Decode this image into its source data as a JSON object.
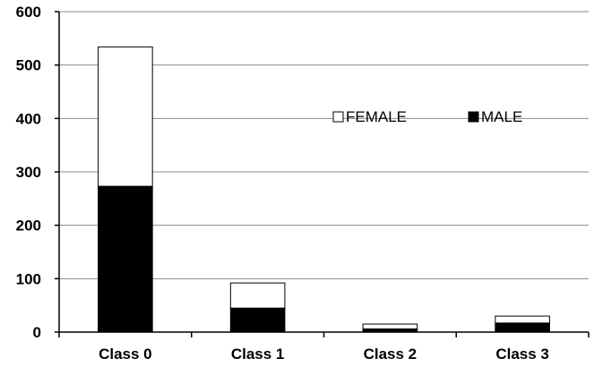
{
  "chart_data": {
    "type": "bar",
    "stacked": true,
    "categories": [
      "Class 0",
      "Class 1",
      "Class 2",
      "Class 3"
    ],
    "series": [
      {
        "name": "MALE",
        "values": [
          273,
          45,
          6,
          17
        ],
        "color": "#000000"
      },
      {
        "name": "FEMALE",
        "values": [
          261,
          47,
          9,
          13
        ],
        "color": "#ffffff"
      }
    ],
    "y_ticks": [
      0,
      100,
      200,
      300,
      400,
      500,
      600
    ],
    "ylim": [
      0,
      600
    ],
    "grid": true,
    "legend": {
      "placement": "top-right",
      "entries": [
        "FEMALE",
        "MALE"
      ]
    },
    "title": "",
    "xlabel": "",
    "ylabel": ""
  }
}
